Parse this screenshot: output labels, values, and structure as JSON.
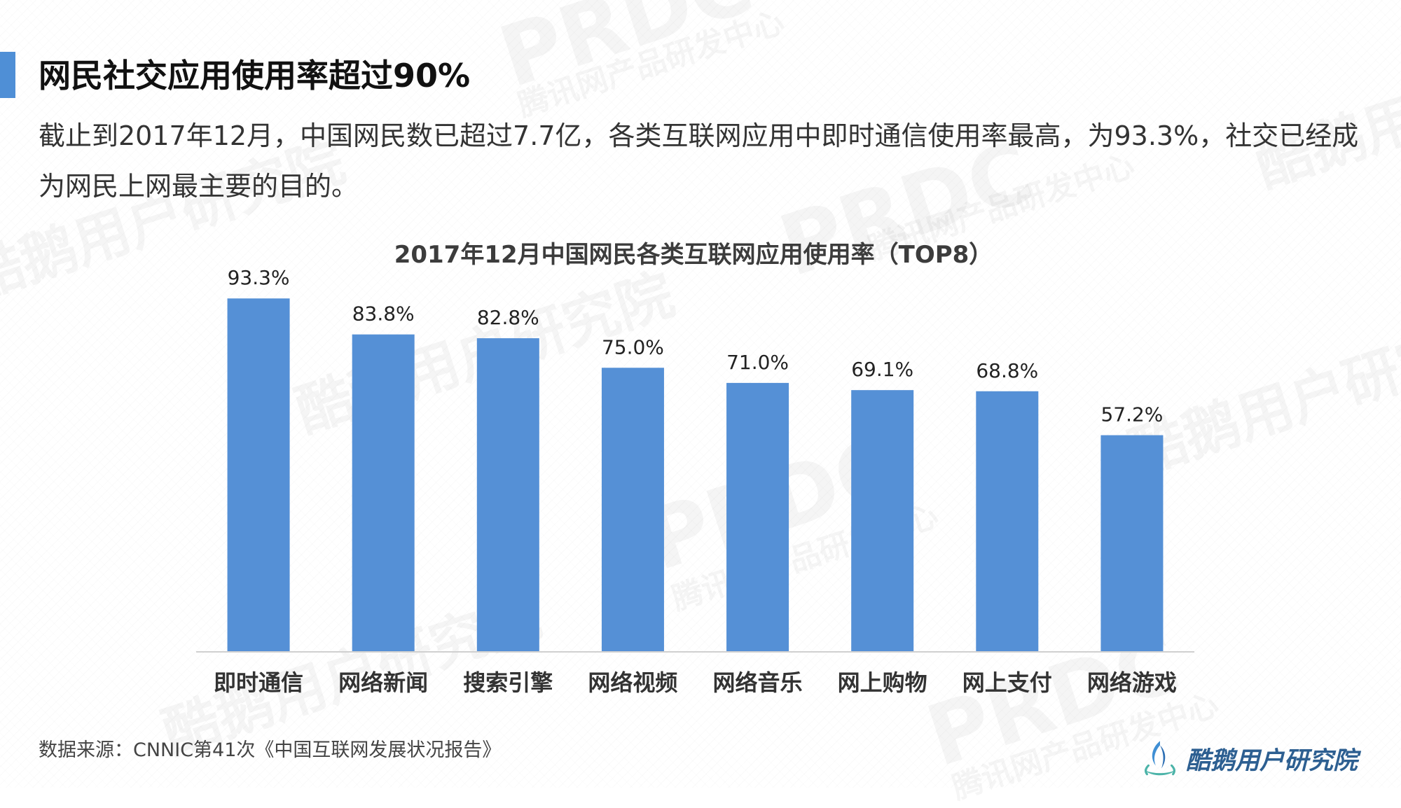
{
  "page": {
    "title": "网民社交应用使用率超过90%",
    "subtitle": "截止到2017年12月，中国网民数已超过7.7亿，各类互联网应用中即时通信使用率最高，为93.3%，社交已经成为网民上网最主要的目的。",
    "source": "数据来源：CNNIC第41次《中国互联网发展状况报告》",
    "brand": "酷鹅用户研究院",
    "accent_color": "#4f8fd6"
  },
  "watermarks": [
    "PRDC",
    "腾讯网产品研发中心",
    "酷鹅用户研究院"
  ],
  "chart_data": {
    "type": "bar",
    "title": "2017年12月中国网民各类互联网应用使用率（TOP8）",
    "categories": [
      "即时通信",
      "网络新闻",
      "搜索引擎",
      "网络视频",
      "网络音乐",
      "网上购物",
      "网上支付",
      "网络游戏"
    ],
    "values": [
      93.3,
      83.8,
      82.8,
      75.0,
      71.0,
      69.1,
      68.8,
      57.2
    ],
    "data_labels": [
      "93.3%",
      "83.8%",
      "82.8%",
      "75.0%",
      "71.0%",
      "69.1%",
      "68.8%",
      "57.2%"
    ],
    "unit": "%",
    "ylim": [
      0,
      100
    ],
    "bar_color": "#5590d6",
    "grid": false,
    "legend": "none"
  }
}
